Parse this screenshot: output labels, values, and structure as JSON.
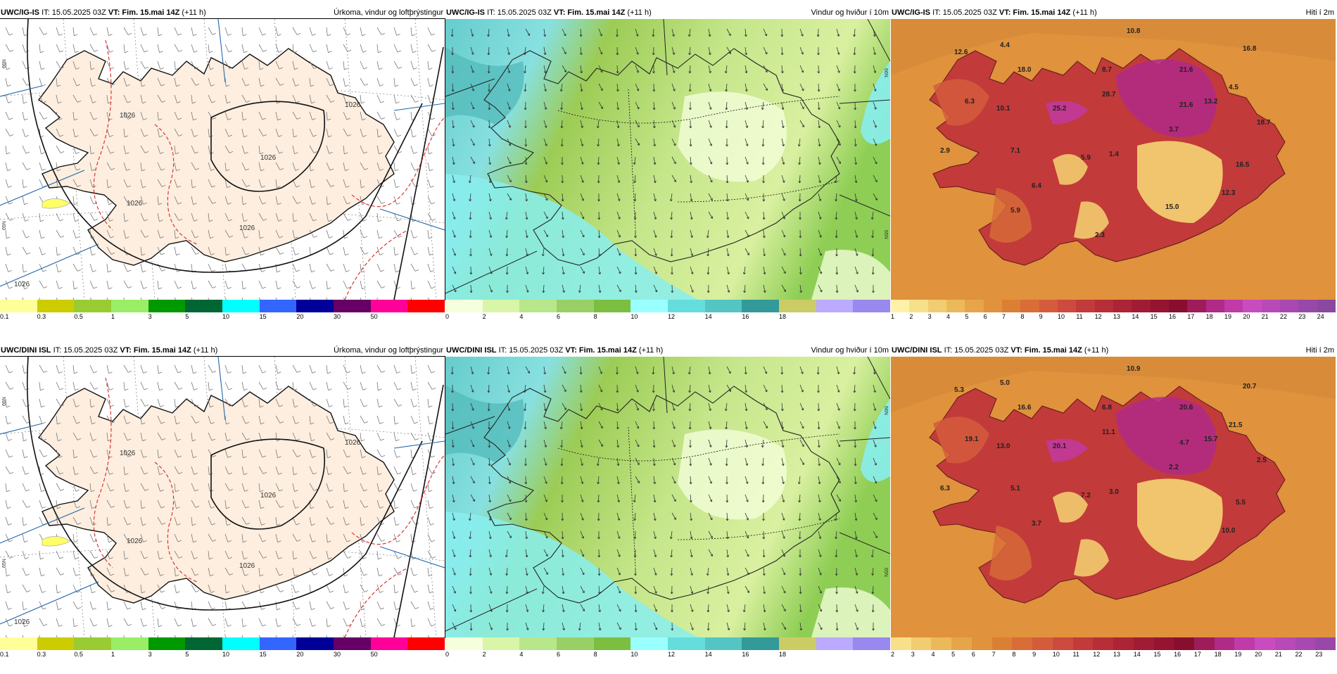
{
  "panels": [
    {
      "id": "precip-ig",
      "model": "UWC/IG-IS",
      "it": "IT: 15.05.2025 03Z",
      "vt_label": "VT:",
      "vt_value": "Fim. 15.mai 14Z",
      "lead": "(+11 h)",
      "title": "Úrkoma, vindur og loftþrýstingur",
      "colorbar": {
        "colors": [
          "#ffff99",
          "#cccc00",
          "#99cc33",
          "#99ee66",
          "#009900",
          "#006633",
          "#00ffff",
          "#3366ff",
          "#000099",
          "#660066",
          "#ff0099",
          "#ff0000"
        ],
        "ticks": [
          "0.1",
          "0.3",
          "0.5",
          "1",
          "3",
          "5",
          "10",
          "15",
          "20",
          "30",
          "50"
        ]
      },
      "isobar_labels": [
        "1026",
        "1026",
        "1026",
        "1026",
        "1026",
        "1026"
      ]
    },
    {
      "id": "wind-ig",
      "model": "UWC/IG-IS",
      "it": "IT: 15.05.2025 03Z",
      "vt_label": "VT:",
      "vt_value": "Fim. 15.mai 14Z",
      "lead": "(+11 h)",
      "title": "Vindur og hviður í 10m",
      "colorbar": {
        "colors": [
          "#f5ffdd",
          "#d9f5a8",
          "#b8e68a",
          "#99d066",
          "#7cbf40",
          "#99ffff",
          "#66dddd",
          "#55c4c4",
          "#339999",
          "#cccc66",
          "#bbaaff",
          "#9988ee"
        ],
        "ticks": [
          "0",
          "2",
          "4",
          "6",
          "8",
          "10",
          "12",
          "14",
          "16",
          "18"
        ]
      }
    },
    {
      "id": "temp-ig",
      "model": "UWC/IG-IS",
      "it": "IT: 15.05.2025 03Z",
      "vt_label": "VT:",
      "vt_value": "Fim. 15.mai 14Z",
      "lead": "(+11 h)",
      "title": "Hiti í 2m",
      "colorbar": {
        "colors": [
          "#fff2a8",
          "#f8e08a",
          "#f2cc70",
          "#ecb95a",
          "#e6a548",
          "#e0923c",
          "#da8034",
          "#d86d38",
          "#d45c3c",
          "#cc4a3e",
          "#c23a3a",
          "#b82e38",
          "#ad2436",
          "#a01c34",
          "#941432",
          "#880e30",
          "#9e1c5a",
          "#b02a88",
          "#c03aa8",
          "#c84cc0",
          "#b84ab8",
          "#a848b0",
          "#9848a8",
          "#8a48a0"
        ],
        "ticks": [
          "1",
          "2",
          "3",
          "4",
          "5",
          "6",
          "7",
          "8",
          "9",
          "10",
          "11",
          "12",
          "13",
          "14",
          "15",
          "16",
          "17",
          "18",
          "19",
          "20",
          "21",
          "22",
          "23",
          "24"
        ]
      },
      "values": [
        "10.8",
        "4.4",
        "12.6",
        "16.8",
        "18.0",
        "8.7",
        "21.6",
        "4.5",
        "6.3",
        "10.1",
        "25.2",
        "28.7",
        "21.6",
        "13.2",
        "18.7",
        "3.7",
        "2.9",
        "7.1",
        "5.9",
        "1.4",
        "16.5",
        "6.4",
        "12.3",
        "5.9",
        "15.0",
        "2.3"
      ]
    },
    {
      "id": "precip-dini",
      "model": "UWC/DINI ISL",
      "it": "IT: 15.05.2025 03Z",
      "vt_label": "VT:",
      "vt_value": "Fim. 15.mai 14Z",
      "lead": "(+11 h)",
      "title": "Úrkoma, vindur og loftþrýstingur",
      "colorbar": {
        "colors": [
          "#ffff99",
          "#cccc00",
          "#99cc33",
          "#99ee66",
          "#009900",
          "#006633",
          "#00ffff",
          "#3366ff",
          "#000099",
          "#660066",
          "#ff0099",
          "#ff0000"
        ],
        "ticks": [
          "0.1",
          "0.3",
          "0.5",
          "1",
          "3",
          "5",
          "10",
          "15",
          "20",
          "30",
          "50"
        ]
      },
      "isobar_labels": [
        "1026",
        "1026",
        "1026",
        "1026",
        "1026",
        "1026"
      ]
    },
    {
      "id": "wind-dini",
      "model": "UWC/DINI ISL",
      "it": "IT: 15.05.2025 03Z",
      "vt_label": "VT:",
      "vt_value": "Fim. 15.mai 14Z",
      "lead": "(+11 h)",
      "title": "Vindur og hviður í 10m",
      "colorbar": {
        "colors": [
          "#f5ffdd",
          "#d9f5a8",
          "#b8e68a",
          "#99d066",
          "#7cbf40",
          "#99ffff",
          "#66dddd",
          "#55c4c4",
          "#339999",
          "#cccc66",
          "#bbaaff",
          "#9988ee"
        ],
        "ticks": [
          "0",
          "2",
          "4",
          "6",
          "8",
          "10",
          "12",
          "14",
          "16",
          "18"
        ]
      }
    },
    {
      "id": "temp-dini",
      "model": "UWC/DINI ISL",
      "it": "IT: 15.05.2025 03Z",
      "vt_label": "VT:",
      "vt_value": "Fim. 15.mai 14Z",
      "lead": "(+11 h)",
      "title": "Hiti í 2m",
      "colorbar": {
        "colors": [
          "#f8e08a",
          "#f2cc70",
          "#ecb95a",
          "#e6a548",
          "#e0923c",
          "#da8034",
          "#d86d38",
          "#d45c3c",
          "#cc4a3e",
          "#c23a3a",
          "#b82e38",
          "#ad2436",
          "#a01c34",
          "#941432",
          "#880e30",
          "#9e1c5a",
          "#b02a88",
          "#c03aa8",
          "#c84cc0",
          "#b84ab8",
          "#a848b0",
          "#9848a8"
        ],
        "ticks": [
          "2",
          "3",
          "4",
          "5",
          "6",
          "7",
          "8",
          "9",
          "10",
          "11",
          "12",
          "13",
          "14",
          "15",
          "16",
          "17",
          "18",
          "19",
          "20",
          "21",
          "22",
          "23"
        ]
      },
      "values": [
        "10.9",
        "5.0",
        "5.3",
        "20.7",
        "16.6",
        "6.8",
        "20.6",
        "21.5",
        "19.1",
        "13.0",
        "20.1",
        "11.1",
        "4.7",
        "15.7",
        "2.5",
        "2.2",
        "6.3",
        "5.1",
        "7.2",
        "3.0",
        "5.5",
        "3.7",
        "10.0"
      ]
    }
  ],
  "axis_labels": [
    "66N",
    "65N",
    "66N",
    "65N"
  ]
}
